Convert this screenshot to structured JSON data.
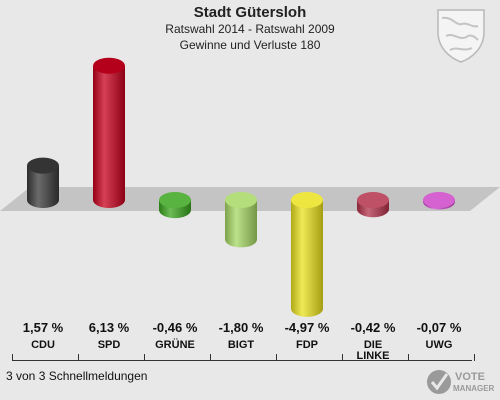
{
  "header": {
    "title": "Stadt Gütersloh",
    "subtitle": "Ratswahl 2014 - Ratswahl 2009",
    "subtitle2": "Gewinne und Verluste 180"
  },
  "footer": {
    "text": "3 von 3 Schnellmeldungen"
  },
  "logo": {
    "line1": "VOTE",
    "line2": "MANAGER"
  },
  "chart_data": {
    "type": "bar",
    "title": "Stadt Gütersloh",
    "categories": [
      "CDU",
      "SPD",
      "GRÜNE",
      "BIGT",
      "FDP",
      "DIE LINKE",
      "UWG"
    ],
    "values": [
      1.57,
      6.13,
      -0.46,
      -1.8,
      -4.97,
      -0.42,
      -0.07
    ],
    "labels": [
      "1,57 %",
      "6,13 %",
      "-0,46 %",
      "-1,80 %",
      "-4,97 %",
      "-0,42 %",
      "-0,07 %"
    ],
    "colors": [
      "#3a3a3a",
      "#c8001e",
      "#3aa51e",
      "#a6d864",
      "#ebe11e",
      "#b4324b",
      "#cd46c8"
    ],
    "ylim": [
      -5,
      6.5
    ],
    "grid": false
  }
}
